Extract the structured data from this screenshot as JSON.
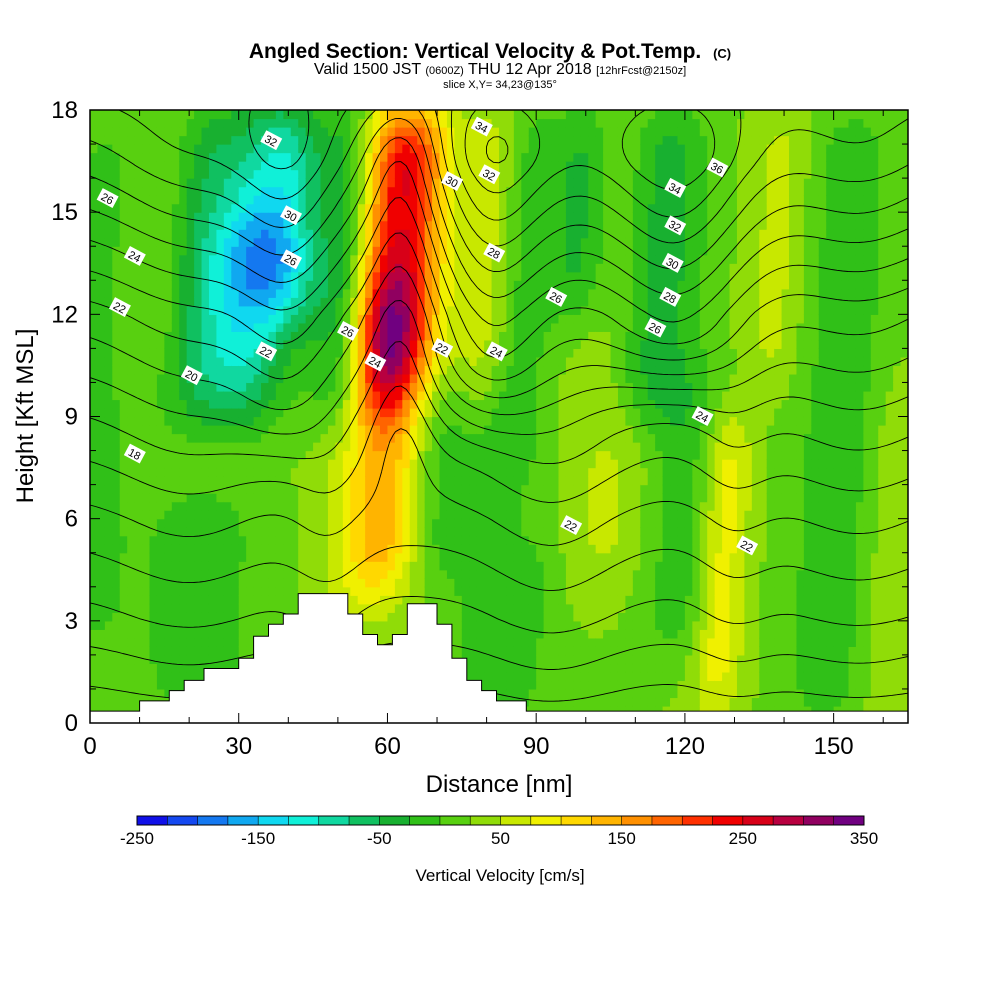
{
  "title": {
    "main": "Angled Section: Vertical Velocity & Pot.Temp.",
    "main_units": "(C)",
    "valid_prefix": "Valid 1500 JST",
    "valid_zulu": "(0600Z)",
    "valid_date": "THU 12 Apr 2018",
    "forecast": "[12hrFcst@2150z]",
    "slice": "slice X,Y= 34,23@135°"
  },
  "chart_data": {
    "type": "heatmap",
    "xlabel": "Distance [nm]",
    "ylabel": "Height [Kft MSL]",
    "xlim": [
      0,
      165
    ],
    "ylim": [
      0,
      18
    ],
    "x_ticks": [
      0,
      30,
      60,
      90,
      120,
      150
    ],
    "x_tick_labels": [
      "0",
      "30",
      "60",
      "90",
      "120",
      "150"
    ],
    "y_ticks": [
      0,
      3,
      6,
      9,
      12,
      15,
      18
    ],
    "y_tick_labels": [
      "0",
      "3",
      "6",
      "9",
      "12",
      "15",
      "18"
    ],
    "colorbar": {
      "label": "Vertical Velocity [cm/s]",
      "min": -250,
      "max": 350,
      "step": 25,
      "tick_values": [
        -250,
        -150,
        -50,
        50,
        150,
        250,
        350
      ],
      "tick_labels": [
        "-250",
        "-150",
        "-50",
        "50",
        "150",
        "250",
        "350"
      ],
      "colors": [
        "#1010e8",
        "#1448f0",
        "#1478f0",
        "#10a8f0",
        "#10d8f0",
        "#10f0d8",
        "#10d8a0",
        "#10c060",
        "#18b030",
        "#30c018",
        "#58d010",
        "#90dc08",
        "#c8e800",
        "#f0f000",
        "#ffd800",
        "#ffb400",
        "#ff9000",
        "#ff6400",
        "#ff3000",
        "#f00000",
        "#d80018",
        "#b80040",
        "#900060",
        "#700080"
      ]
    },
    "terrain": [
      [
        0,
        0.35
      ],
      [
        10,
        0.35
      ],
      [
        10,
        0.65
      ],
      [
        16,
        0.65
      ],
      [
        16,
        0.95
      ],
      [
        19,
        0.95
      ],
      [
        19,
        1.25
      ],
      [
        23,
        1.25
      ],
      [
        23,
        1.6
      ],
      [
        30,
        1.6
      ],
      [
        30,
        1.9
      ],
      [
        33,
        1.9
      ],
      [
        33,
        2.55
      ],
      [
        36,
        2.55
      ],
      [
        36,
        2.9
      ],
      [
        39,
        2.9
      ],
      [
        39,
        3.2
      ],
      [
        42,
        3.2
      ],
      [
        42,
        3.8
      ],
      [
        52,
        3.8
      ],
      [
        52,
        3.2
      ],
      [
        55,
        3.2
      ],
      [
        55,
        2.6
      ],
      [
        58,
        2.6
      ],
      [
        58,
        2.3
      ],
      [
        61,
        2.3
      ],
      [
        61,
        2.6
      ],
      [
        64,
        2.6
      ],
      [
        64,
        3.5
      ],
      [
        70,
        3.5
      ],
      [
        70,
        2.9
      ],
      [
        73,
        2.9
      ],
      [
        73,
        1.9
      ],
      [
        76,
        1.9
      ],
      [
        76,
        1.25
      ],
      [
        79,
        1.25
      ],
      [
        79,
        0.95
      ],
      [
        82,
        0.95
      ],
      [
        82,
        0.65
      ],
      [
        88,
        0.65
      ],
      [
        88,
        0.35
      ],
      [
        165,
        0.35
      ]
    ],
    "w_columns": [
      {
        "x": 1,
        "w": 10,
        "amp": -30,
        "z0": 2,
        "z1": 18
      },
      {
        "x": 13,
        "w": 7,
        "amp": 30,
        "z0": 10,
        "z1": 18
      },
      {
        "x": 21,
        "w": 9,
        "amp": -70,
        "z0": 9,
        "z1": 18
      },
      {
        "x": 37,
        "w": 10,
        "amp": -140,
        "z0": 12,
        "z1": 18
      },
      {
        "x": 31,
        "w": 9,
        "amp": -100,
        "z0": 9,
        "z1": 15
      },
      {
        "x": 24,
        "w": 12,
        "amp": -40,
        "z0": 0,
        "z1": 7
      },
      {
        "x": 44,
        "w": 6,
        "amp": 35,
        "z0": 13,
        "z1": 18
      },
      {
        "x": 50,
        "w": 6,
        "amp": -75,
        "z0": 9,
        "z1": 18
      },
      {
        "x": 57,
        "w": 8,
        "amp": 70,
        "z0": 3.5,
        "z1": 10
      },
      {
        "x": 62,
        "w": 7,
        "amp": 60,
        "z0": 4,
        "z1": 10
      },
      {
        "x": 61,
        "w": 9,
        "amp": 230,
        "z0": 10,
        "z1": 18
      },
      {
        "x": 59,
        "w": 6,
        "amp": 100,
        "z0": 9,
        "z1": 13
      },
      {
        "x": 71,
        "w": 6,
        "amp": -40,
        "z0": 4,
        "z1": 18
      },
      {
        "x": 77,
        "w": 8,
        "amp": 50,
        "z0": 10,
        "z1": 18
      },
      {
        "x": 80,
        "w": 5,
        "amp": -30,
        "z0": 0,
        "z1": 8
      },
      {
        "x": 86,
        "w": 6,
        "amp": -45,
        "z0": 7,
        "z1": 18
      },
      {
        "x": 89,
        "w": 7,
        "amp": -35,
        "z0": 0,
        "z1": 6
      },
      {
        "x": 97,
        "w": 6,
        "amp": -60,
        "z0": 12,
        "z1": 18
      },
      {
        "x": 105,
        "w": 8,
        "amp": 30,
        "z0": 4,
        "z1": 18
      },
      {
        "x": 113,
        "w": 9,
        "amp": -70,
        "z0": 9,
        "z1": 18
      },
      {
        "x": 121,
        "w": 8,
        "amp": -40,
        "z0": 2,
        "z1": 10
      },
      {
        "x": 129,
        "w": 5,
        "amp": 70,
        "z0": 0.5,
        "z1": 9
      },
      {
        "x": 137,
        "w": 6,
        "amp": 35,
        "z0": 10,
        "z1": 18
      },
      {
        "x": 151,
        "w": 9,
        "amp": -40,
        "z0": 0,
        "z1": 18
      },
      {
        "x": 163,
        "w": 5,
        "amp": 25,
        "z0": 0,
        "z1": 10
      }
    ],
    "theta_contours": {
      "step": 1,
      "levels_min": 14,
      "levels_max": 37,
      "base_profile": [
        [
          0,
          13.0
        ],
        [
          3,
          15.5
        ],
        [
          6,
          17.5
        ],
        [
          9,
          19.8
        ],
        [
          12,
          22.3
        ],
        [
          15,
          25.6
        ],
        [
          18,
          28.6
        ]
      ],
      "perturbations": [
        {
          "x": 20,
          "w": 16,
          "amp": 1.3,
          "z0": 0,
          "z1": 18
        },
        {
          "x": 40,
          "w": 11,
          "amp": 2.2,
          "z0": 8,
          "z1": 18
        },
        {
          "x": 48,
          "w": 8,
          "amp": 1.2,
          "z0": 0,
          "z1": 8
        },
        {
          "x": 63,
          "w": 7,
          "amp": -2.0,
          "z0": 7,
          "z1": 18
        },
        {
          "x": 80,
          "w": 11,
          "amp": 3.2,
          "z0": 9,
          "z1": 18
        },
        {
          "x": 93,
          "w": 14,
          "amp": 1.6,
          "z0": 0,
          "z1": 18
        },
        {
          "x": 118,
          "w": 16,
          "amp": 3.8,
          "z0": 10,
          "z1": 18
        },
        {
          "x": 130,
          "w": 8,
          "amp": 1.0,
          "z0": 0,
          "z1": 10
        },
        {
          "x": 155,
          "w": 16,
          "amp": 1.2,
          "z0": 0,
          "z1": 18
        }
      ]
    },
    "contour_labels": [
      {
        "text": "18",
        "x": 9,
        "z": 7.9
      },
      {
        "text": "20",
        "x": 20.5,
        "z": 10.2
      },
      {
        "text": "22",
        "x": 6,
        "z": 12.2
      },
      {
        "text": "24",
        "x": 9,
        "z": 13.7
      },
      {
        "text": "26",
        "x": 3.5,
        "z": 15.4
      },
      {
        "text": "22",
        "x": 35.5,
        "z": 10.9
      },
      {
        "text": "26",
        "x": 40.5,
        "z": 13.6
      },
      {
        "text": "30",
        "x": 40.5,
        "z": 14.9
      },
      {
        "text": "32",
        "x": 36.5,
        "z": 17.1
      },
      {
        "text": "26",
        "x": 52,
        "z": 11.5
      },
      {
        "text": "24",
        "x": 57.5,
        "z": 10.6
      },
      {
        "text": "22",
        "x": 71,
        "z": 11.0
      },
      {
        "text": "30",
        "x": 73,
        "z": 15.9
      },
      {
        "text": "34",
        "x": 79,
        "z": 17.5
      },
      {
        "text": "32",
        "x": 80.5,
        "z": 16.1
      },
      {
        "text": "28",
        "x": 81.5,
        "z": 13.8
      },
      {
        "text": "24",
        "x": 82,
        "z": 10.9
      },
      {
        "text": "26",
        "x": 94,
        "z": 12.5
      },
      {
        "text": "22",
        "x": 97,
        "z": 5.8
      },
      {
        "text": "34",
        "x": 118,
        "z": 15.7
      },
      {
        "text": "36",
        "x": 126.5,
        "z": 16.3
      },
      {
        "text": "32",
        "x": 118,
        "z": 14.6
      },
      {
        "text": "30",
        "x": 117.5,
        "z": 13.5
      },
      {
        "text": "28",
        "x": 117,
        "z": 12.5
      },
      {
        "text": "26",
        "x": 114,
        "z": 11.6
      },
      {
        "text": "24",
        "x": 123.5,
        "z": 9.0
      },
      {
        "text": "22",
        "x": 132.5,
        "z": 5.2
      }
    ]
  }
}
